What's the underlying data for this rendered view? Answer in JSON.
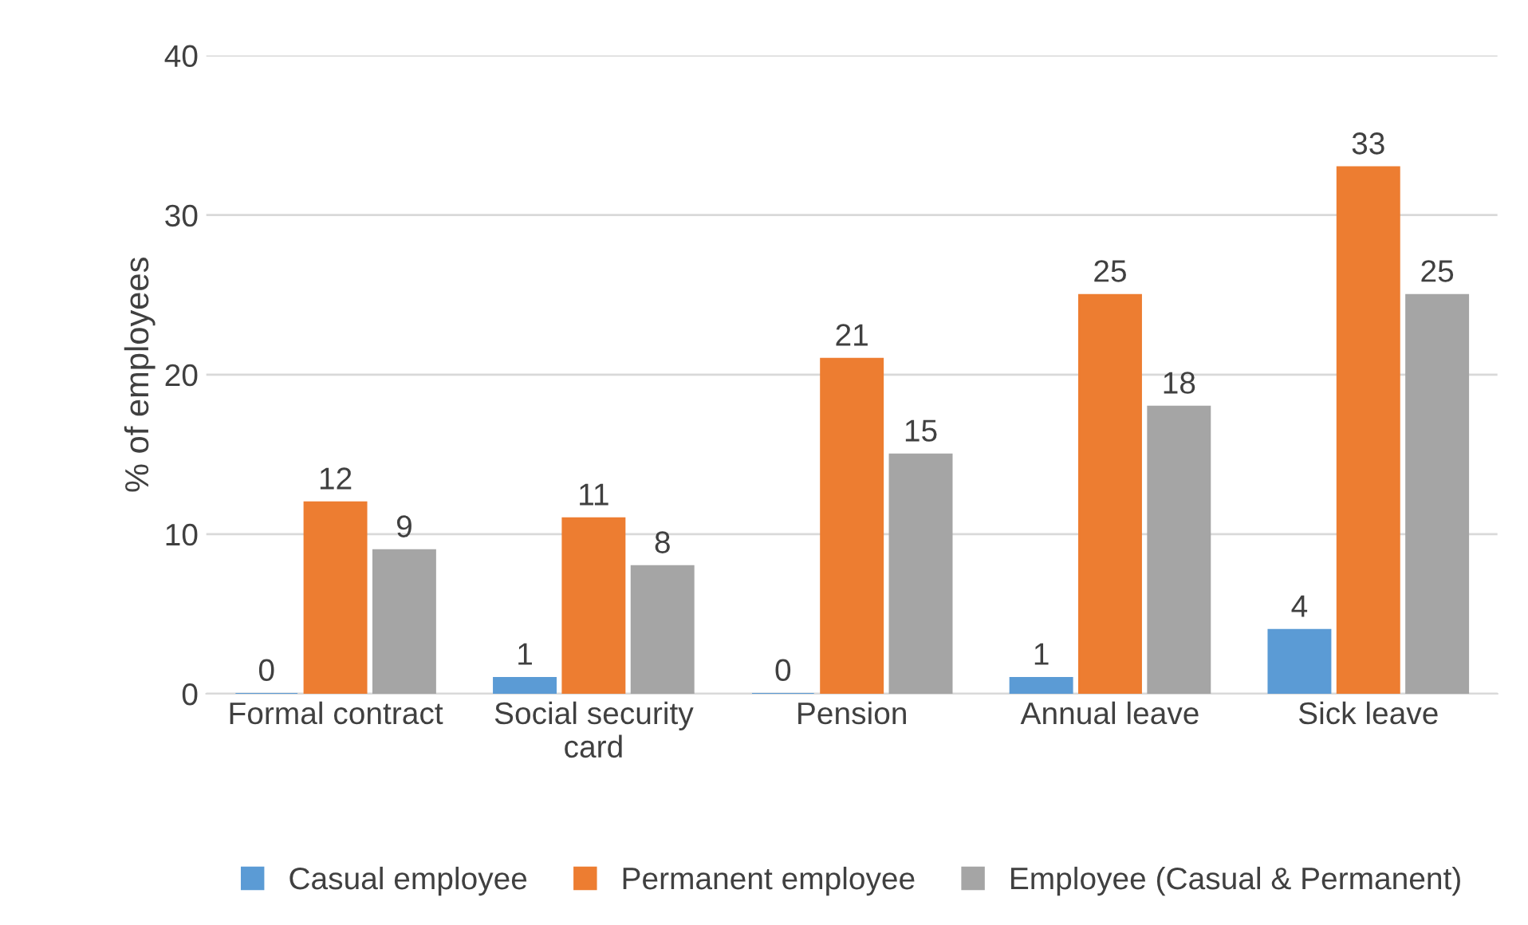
{
  "chart_data": {
    "type": "bar",
    "ylabel": "% of employees",
    "categories": [
      "Formal contract",
      "Social security card",
      "Pension",
      "Annual leave",
      "Sick leave"
    ],
    "series": [
      {
        "name": "Casual employee",
        "color": "#5b9bd5",
        "values": [
          0,
          1,
          0,
          1,
          4
        ]
      },
      {
        "name": "Permanent employee",
        "color": "#ed7d31",
        "values": [
          12,
          11,
          21,
          25,
          33
        ]
      },
      {
        "name": "Employee (Casual & Permanent)",
        "color": "#a5a5a5",
        "values": [
          9,
          8,
          15,
          18,
          25
        ]
      }
    ],
    "ylim": [
      0,
      40
    ],
    "yticks": [
      0,
      10,
      20,
      30,
      40
    ],
    "grid": "y",
    "legend": "bottom",
    "data_labels": true
  }
}
